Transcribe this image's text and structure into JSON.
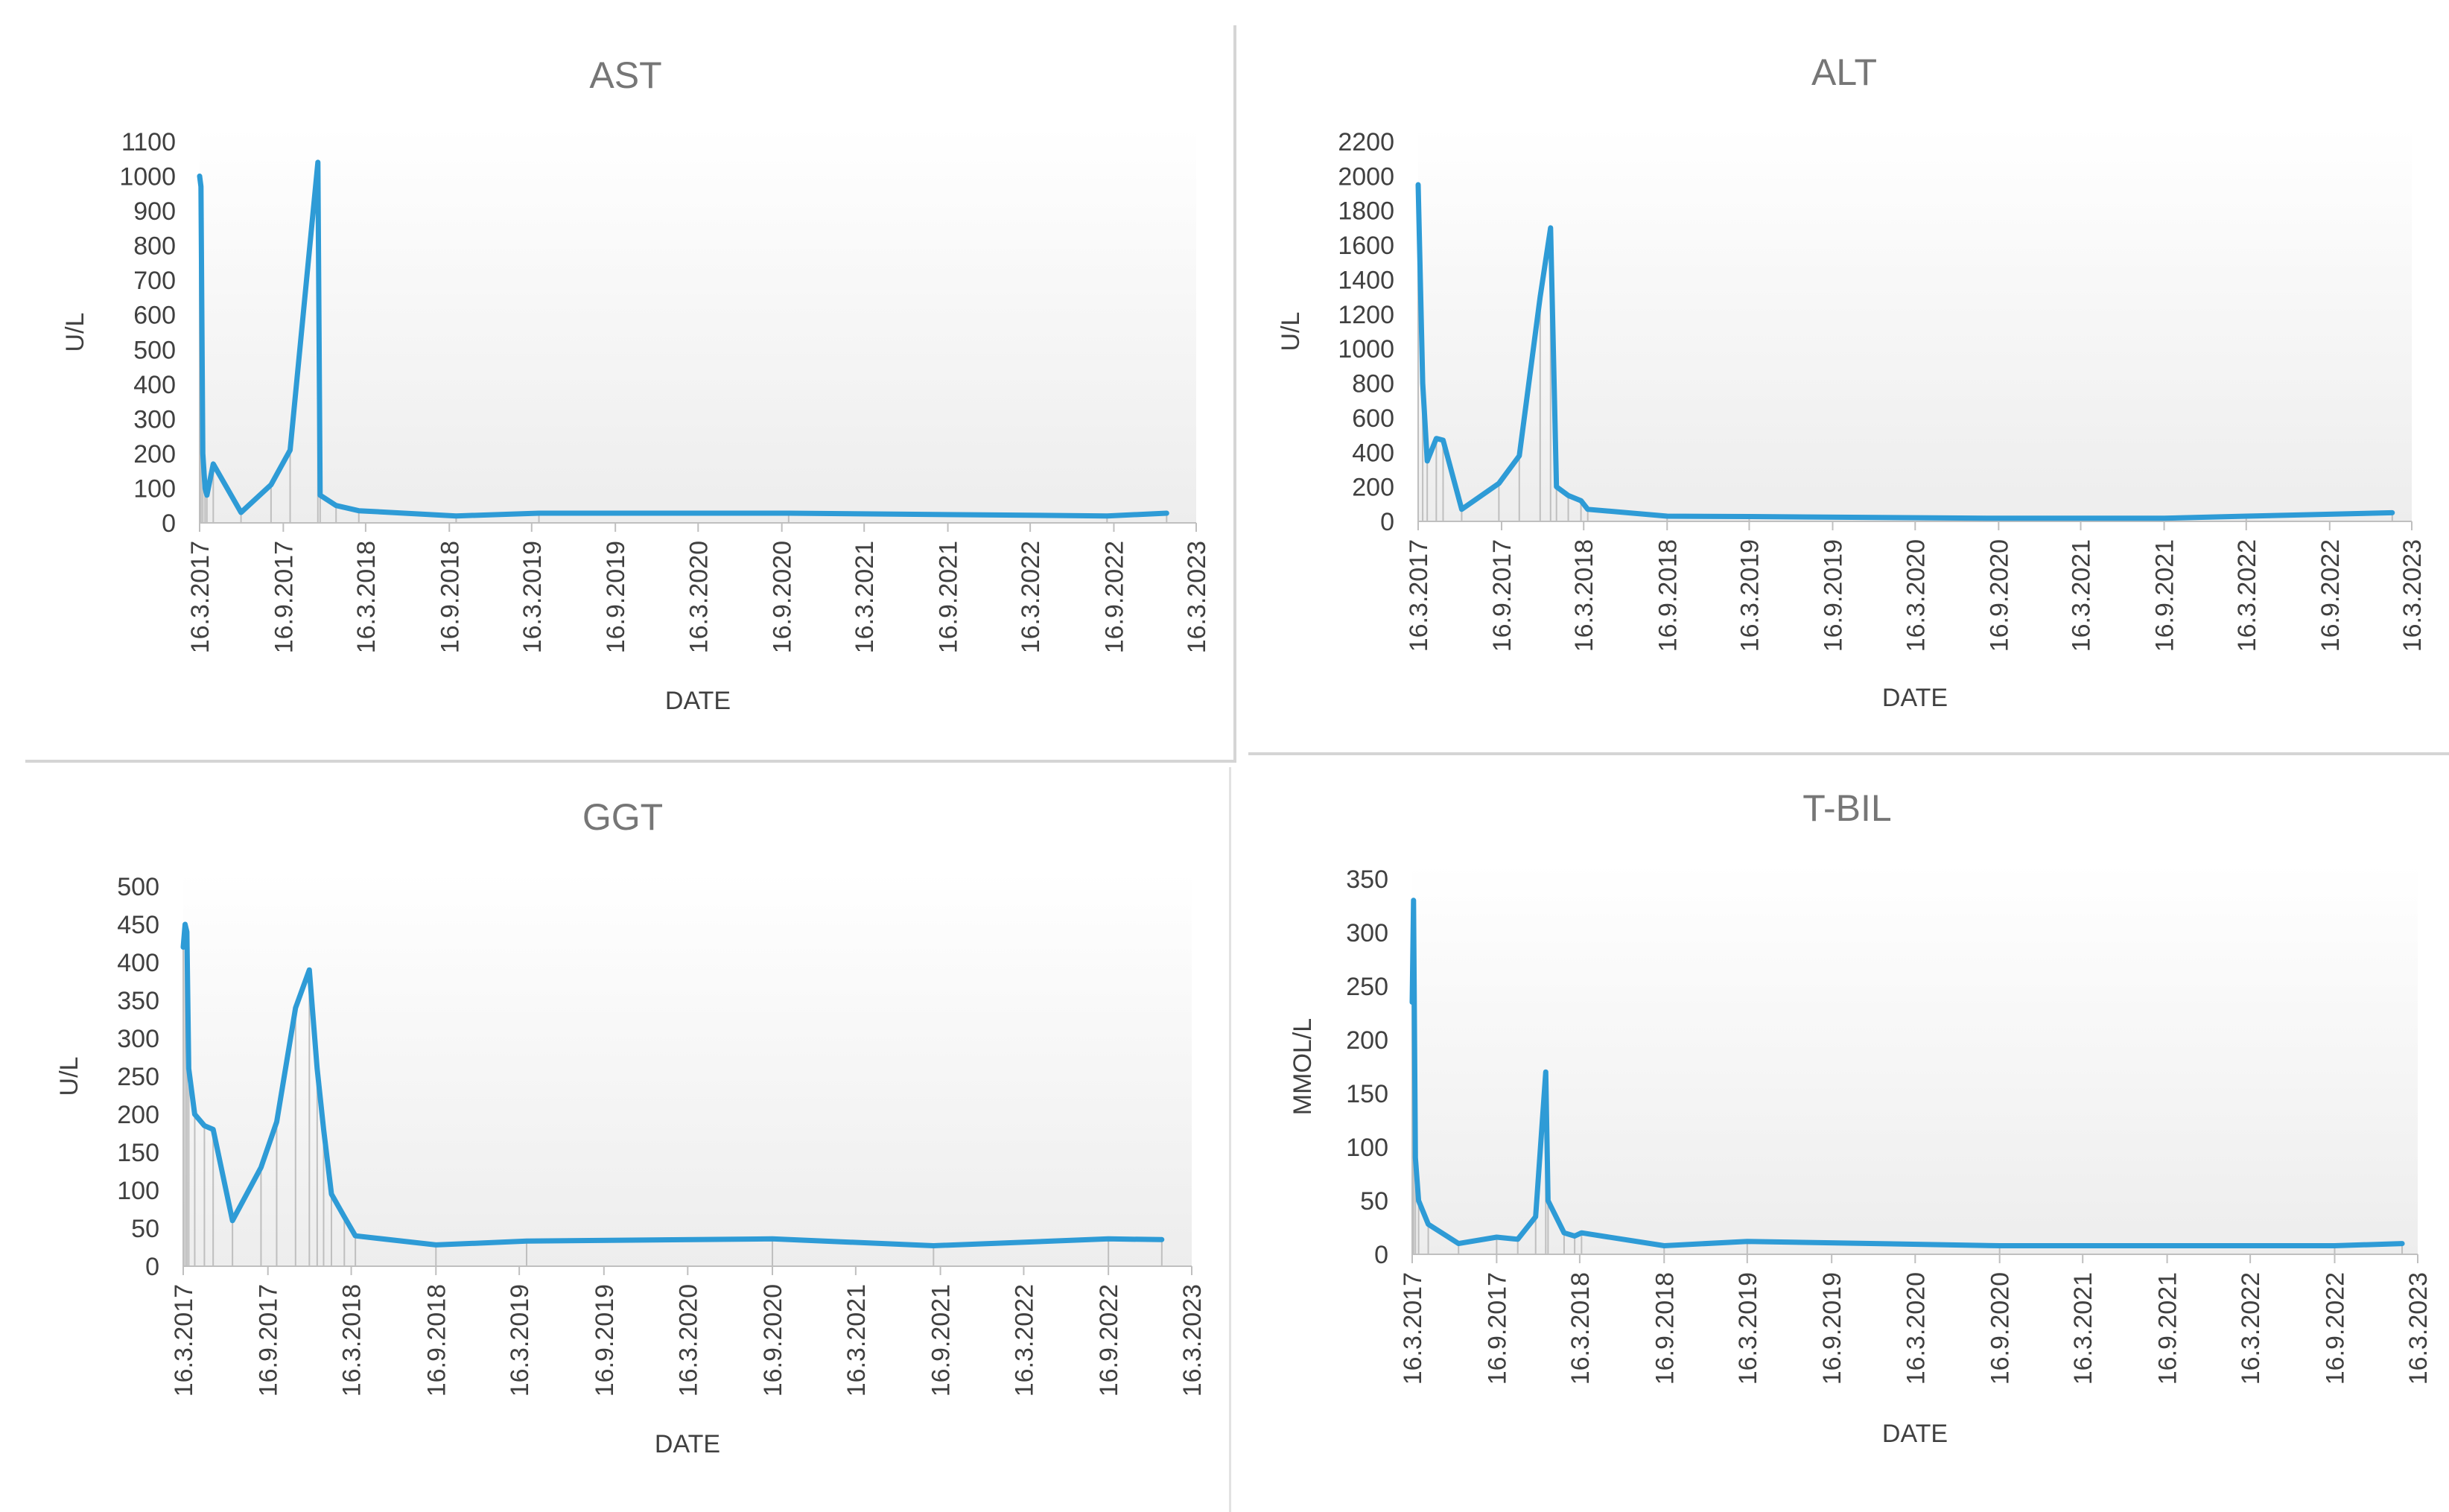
{
  "colors": {
    "line": "#2E9BD6",
    "drop": "#BFBFBF",
    "axis": "#BFBFBF",
    "text": "#404040",
    "title": "#767676",
    "divider": "#D0D0D0"
  },
  "chart_data": [
    {
      "type": "line",
      "title": "AST",
      "xlabel": "DATE",
      "ylabel": "U/L",
      "xlim": [
        "2017-03-16",
        "2023-03-16"
      ],
      "ylim": [
        0,
        1100
      ],
      "x_ticks": [
        "16.3.2017",
        "16.9.2017",
        "16.3.2018",
        "16.9.2018",
        "16.3.2019",
        "16.9.2019",
        "16.3.2020",
        "16.9.2020",
        "16.3.2021",
        "16.9.2021",
        "16.3.2022",
        "16.9.2022",
        "16.3.2023"
      ],
      "y_ticks": [
        "0",
        "100",
        "200",
        "300",
        "400",
        "500",
        "600",
        "700",
        "800",
        "900",
        "1000",
        "1100"
      ],
      "grid": false,
      "drop_lines": true,
      "series": [
        {
          "values": [
            [
              "2017-03-16",
              1000
            ],
            [
              "2017-03-19",
              970
            ],
            [
              "2017-03-23",
              200
            ],
            [
              "2017-03-28",
              100
            ],
            [
              "2017-04-01",
              80
            ],
            [
              "2017-04-15",
              170
            ],
            [
              "2017-06-15",
              30
            ],
            [
              "2017-08-20",
              110
            ],
            [
              "2017-10-01",
              210
            ],
            [
              "2017-12-01",
              1040
            ],
            [
              "2017-12-06",
              80
            ],
            [
              "2018-01-10",
              50
            ],
            [
              "2018-03-01",
              35
            ],
            [
              "2018-10-01",
              20
            ],
            [
              "2019-04-01",
              28
            ],
            [
              "2020-10-01",
              28
            ],
            [
              "2022-09-01",
              20
            ],
            [
              "2023-01-10",
              28
            ]
          ]
        }
      ]
    },
    {
      "type": "line",
      "title": "ALT",
      "xlabel": "DATE",
      "ylabel": "U/L",
      "xlim": [
        "2017-03-16",
        "2023-03-16"
      ],
      "ylim": [
        0,
        2200
      ],
      "x_ticks": [
        "16.3.2017",
        "16.9.2017",
        "16.3.2018",
        "16.9.2018",
        "16.3.2019",
        "16.9.2019",
        "16.3.2020",
        "16.9.2020",
        "16.3.2021",
        "16.9.2021",
        "16.3.2022",
        "16.9.2022",
        "16.3.2023"
      ],
      "y_ticks": [
        "0",
        "200",
        "400",
        "600",
        "800",
        "1000",
        "1200",
        "1400",
        "1600",
        "1800",
        "2000",
        "2200"
      ],
      "grid": false,
      "drop_lines": true,
      "series": [
        {
          "values": [
            [
              "2017-03-16",
              1950
            ],
            [
              "2017-03-26",
              800
            ],
            [
              "2017-04-05",
              350
            ],
            [
              "2017-04-25",
              480
            ],
            [
              "2017-05-10",
              470
            ],
            [
              "2017-06-20",
              70
            ],
            [
              "2017-09-10",
              220
            ],
            [
              "2017-10-25",
              380
            ],
            [
              "2017-12-10",
              1300
            ],
            [
              "2018-01-02",
              1700
            ],
            [
              "2018-01-15",
              200
            ],
            [
              "2018-02-10",
              150
            ],
            [
              "2018-03-10",
              120
            ],
            [
              "2018-03-25",
              70
            ],
            [
              "2018-09-16",
              30
            ],
            [
              "2019-03-16",
              28
            ],
            [
              "2020-09-16",
              18
            ],
            [
              "2021-09-16",
              18
            ],
            [
              "2022-03-16",
              30
            ],
            [
              "2023-02-01",
              50
            ]
          ]
        }
      ]
    },
    {
      "type": "line",
      "title": "GGT",
      "xlabel": "DATE",
      "ylabel": "U/L",
      "xlim": [
        "2017-03-16",
        "2023-03-16"
      ],
      "ylim": [
        0,
        500
      ],
      "x_ticks": [
        "16.3.2017",
        "16.9.2017",
        "16.3.2018",
        "16.9.2018",
        "16.3.2019",
        "16.9.2019",
        "16.3.2020",
        "16.9.2020",
        "16.3.2021",
        "16.9.2021",
        "16.3.2022",
        "16.9.2022",
        "16.3.2023"
      ],
      "y_ticks": [
        "0",
        "50",
        "100",
        "150",
        "200",
        "250",
        "300",
        "350",
        "400",
        "450",
        "500"
      ],
      "grid": false,
      "drop_lines": true,
      "series": [
        {
          "values": [
            [
              "2017-03-16",
              420
            ],
            [
              "2017-03-20",
              450
            ],
            [
              "2017-03-24",
              440
            ],
            [
              "2017-03-28",
              260
            ],
            [
              "2017-04-10",
              200
            ],
            [
              "2017-05-01",
              185
            ],
            [
              "2017-05-20",
              180
            ],
            [
              "2017-07-01",
              60
            ],
            [
              "2017-09-01",
              130
            ],
            [
              "2017-10-05",
              190
            ],
            [
              "2017-11-15",
              340
            ],
            [
              "2017-12-15",
              390
            ],
            [
              "2018-01-01",
              260
            ],
            [
              "2018-01-15",
              180
            ],
            [
              "2018-02-01",
              95
            ],
            [
              "2018-03-01",
              65
            ],
            [
              "2018-03-25",
              40
            ],
            [
              "2018-09-16",
              28
            ],
            [
              "2019-04-01",
              33
            ],
            [
              "2020-09-16",
              36
            ],
            [
              "2021-09-01",
              27
            ],
            [
              "2022-09-16",
              36
            ],
            [
              "2023-01-10",
              35
            ]
          ]
        }
      ]
    },
    {
      "type": "line",
      "title": "T-BIL",
      "xlabel": "DATE",
      "ylabel": "MMOL/L",
      "xlim": [
        "2017-03-16",
        "2023-03-16"
      ],
      "ylim": [
        0,
        350
      ],
      "x_ticks": [
        "16.3.2017",
        "16.9.2017",
        "16.3.2018",
        "16.9.2018",
        "16.3.2019",
        "16.9.2019",
        "16.3.2020",
        "16.9.2020",
        "16.3.2021",
        "16.9.2021",
        "16.3.2022",
        "16.9.2022",
        "16.3.2023"
      ],
      "y_ticks": [
        "0",
        "50",
        "100",
        "150",
        "200",
        "250",
        "300",
        "350"
      ],
      "grid": false,
      "drop_lines": true,
      "series": [
        {
          "values": [
            [
              "2017-03-16",
              235
            ],
            [
              "2017-03-19",
              330
            ],
            [
              "2017-03-23",
              90
            ],
            [
              "2017-03-30",
              50
            ],
            [
              "2017-04-20",
              28
            ],
            [
              "2017-06-25",
              10
            ],
            [
              "2017-09-16",
              16
            ],
            [
              "2017-11-01",
              14
            ],
            [
              "2017-12-10",
              35
            ],
            [
              "2018-01-01",
              170
            ],
            [
              "2018-01-06",
              50
            ],
            [
              "2018-02-10",
              20
            ],
            [
              "2018-03-05",
              17
            ],
            [
              "2018-03-20",
              20
            ],
            [
              "2018-09-16",
              8
            ],
            [
              "2019-03-16",
              12
            ],
            [
              "2020-09-16",
              8
            ],
            [
              "2022-09-16",
              8
            ],
            [
              "2023-02-10",
              10
            ]
          ]
        }
      ]
    }
  ]
}
